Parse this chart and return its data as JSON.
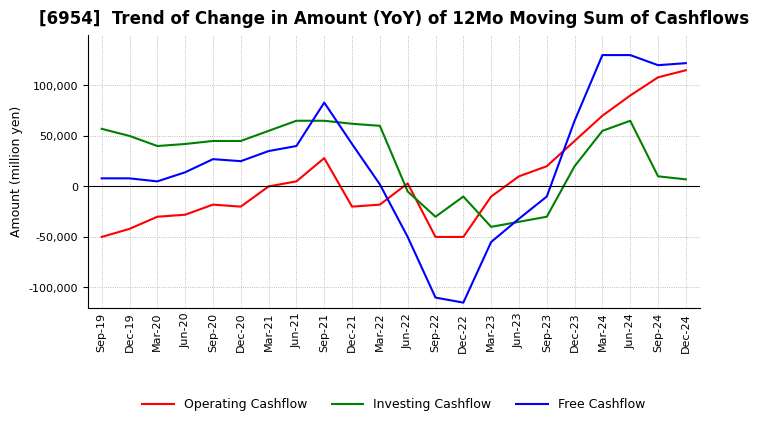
{
  "title": "[6954]  Trend of Change in Amount (YoY) of 12Mo Moving Sum of Cashflows",
  "ylabel": "Amount (million yen)",
  "ylim": [
    -120000,
    150000
  ],
  "yticks": [
    -100000,
    -50000,
    0,
    50000,
    100000
  ],
  "x_labels": [
    "Sep-19",
    "Dec-19",
    "Mar-20",
    "Jun-20",
    "Sep-20",
    "Dec-20",
    "Mar-21",
    "Jun-21",
    "Sep-21",
    "Dec-21",
    "Mar-22",
    "Jun-22",
    "Sep-22",
    "Dec-22",
    "Mar-23",
    "Jun-23",
    "Sep-23",
    "Dec-23",
    "Mar-24",
    "Jun-24",
    "Sep-24",
    "Dec-24"
  ],
  "operating": [
    -50000,
    -42000,
    -30000,
    -28000,
    -18000,
    -20000,
    0,
    5000,
    28000,
    -20000,
    -18000,
    3000,
    -50000,
    -50000,
    -10000,
    10000,
    20000,
    45000,
    70000,
    90000,
    108000,
    115000
  ],
  "investing": [
    57000,
    50000,
    40000,
    42000,
    45000,
    45000,
    55000,
    65000,
    65000,
    62000,
    60000,
    -5000,
    -30000,
    -10000,
    -40000,
    -35000,
    -30000,
    20000,
    55000,
    65000,
    10000,
    7000
  ],
  "free": [
    8000,
    8000,
    5000,
    14000,
    27000,
    25000,
    35000,
    40000,
    83000,
    42000,
    2000,
    -50000,
    -110000,
    -115000,
    -55000,
    -32000,
    -10000,
    65000,
    130000,
    130000,
    120000,
    122000
  ],
  "operating_color": "#ff0000",
  "investing_color": "#008000",
  "free_color": "#0000ff",
  "background_color": "#ffffff",
  "grid_color": "#aaaaaa",
  "title_fontsize": 12,
  "label_fontsize": 9,
  "tick_fontsize": 8,
  "legend_labels": [
    "Operating Cashflow",
    "Investing Cashflow",
    "Free Cashflow"
  ]
}
